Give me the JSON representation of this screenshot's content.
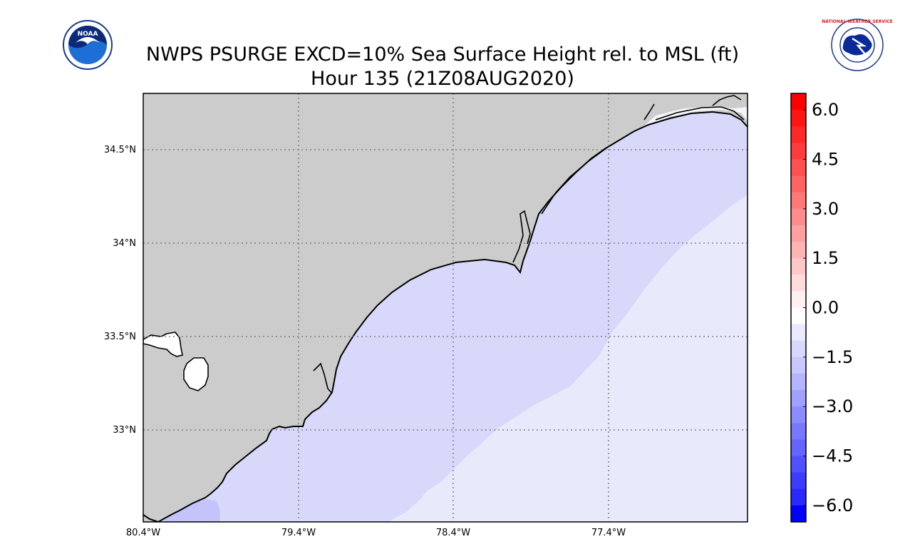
{
  "title": {
    "line1": "NWPS PSURGE EXCD=10% Sea Surface Height rel. to MSL (ft)",
    "line2": "Hour 135 (21Z08AUG2020)"
  },
  "logos": {
    "left": {
      "icon": "noaa-logo-icon",
      "text": "NOAA"
    },
    "right": {
      "icon": "nws-logo-icon",
      "text": "NATIONAL WEATHER SERVICE"
    }
  },
  "map": {
    "lat_labels": [
      "34.5°N",
      "34°N",
      "33.5°N",
      "33°N"
    ],
    "lon_labels": [
      "80.4°W",
      "79.4°W",
      "78.4°W",
      "77.4°W"
    ],
    "colors": {
      "land": "#cccccc",
      "ocean_main": "#d8d8fb",
      "ocean_offshore": "#e9e9fc",
      "ocean_coastal_low": "#c4c4fb",
      "ocean_near_zero": "#f6f4fa",
      "coastline": "#000000",
      "lake": "#ffffff"
    }
  },
  "colorbar": {
    "tick_labels": [
      "6.0",
      "4.5",
      "3.0",
      "1.5",
      "0.0",
      "−1.5",
      "−3.0",
      "−4.5",
      "−6.0"
    ],
    "range": [
      -6.5,
      6.5
    ],
    "step": 0.5,
    "colors_top_to_bottom": [
      "#ff0000",
      "#ff1414",
      "#ff2828",
      "#ff3c3c",
      "#ff5050",
      "#ff6464",
      "#ff7878",
      "#ff8c8c",
      "#ffa0a0",
      "#ffb4b4",
      "#ffc8c8",
      "#ffdcdc",
      "#fff0f0",
      "#ffffff",
      "#e9e9ff",
      "#d8d8ff",
      "#c8c8ff",
      "#b4b4ff",
      "#a0a0ff",
      "#8c8cff",
      "#7878ff",
      "#6464ff",
      "#5050ff",
      "#3c3cff",
      "#2828ff",
      "#0000ff"
    ]
  }
}
